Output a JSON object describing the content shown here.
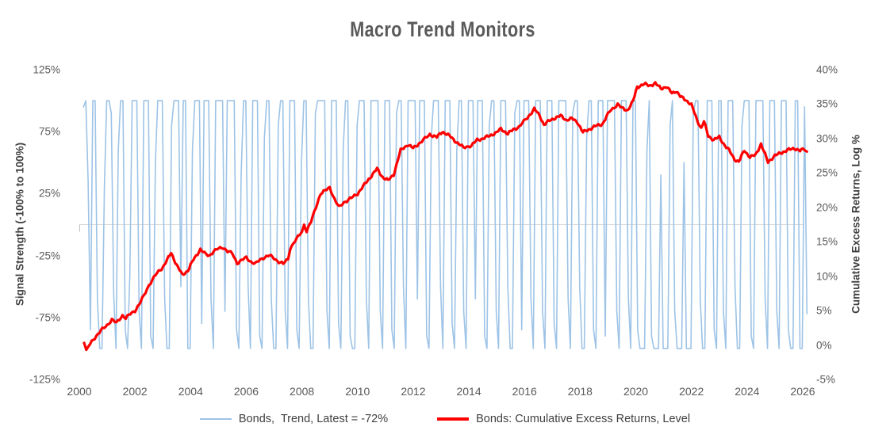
{
  "title": "Macro Trend Monitors",
  "left_axis": {
    "title": "Signal Strength (-100% to 100%)",
    "ticks": [
      "125%",
      "75%",
      "25%",
      "-25%",
      "-75%",
      "-125%"
    ]
  },
  "right_axis": {
    "title": "Cumulative Excess Returns, Log %",
    "ticks": [
      "40%",
      "35%",
      "30%",
      "25%",
      "20%",
      "15%",
      "10%",
      "5%",
      "0%",
      "-5%"
    ]
  },
  "x_axis": {
    "ticks": [
      "2000",
      "2002",
      "2004",
      "2006",
      "2008",
      "2010",
      "2012",
      "2014",
      "2016",
      "2018",
      "2020",
      "2022",
      "2024",
      "2026"
    ]
  },
  "legend": {
    "items": [
      {
        "label": "Bonds,  Trend, Latest = -72%",
        "color": "#9DC3E6",
        "thickness": 2.5
      },
      {
        "label": "Bonds: Cumulative Excess Returns, Level",
        "color": "#FF0000",
        "thickness": 3.5
      }
    ]
  },
  "colors": {
    "trend_blue": "#9DC3E6",
    "returns_red": "#FF0000",
    "gridline": "#D9D9D9",
    "axis_tick_stub": "#BFBFBF",
    "title_text": "#595959",
    "tick_text": "#595959",
    "label_text": "#404040"
  },
  "chart_data": {
    "type": "line",
    "title": "Macro Trend Monitors",
    "x_range": [
      2000,
      2026
    ],
    "grid": "horizontal-zero-line-only",
    "legend_position": "bottom",
    "series": [
      {
        "name": "Bonds,  Trend, Latest = -72%",
        "axis": "left",
        "color": "#9DC3E6",
        "ylim": [
          -125,
          125
        ],
        "units": "% signal strength",
        "x_start": 2000.15,
        "x_step": 0.0833333,
        "latest": -72,
        "values": [
          95,
          100,
          35,
          -85,
          100,
          100,
          -60,
          -100,
          -100,
          30,
          100,
          100,
          90,
          -55,
          -100,
          60,
          100,
          100,
          -85,
          -100,
          -40,
          100,
          100,
          100,
          -70,
          -100,
          100,
          100,
          100,
          -90,
          -100,
          50,
          100,
          100,
          100,
          -60,
          -100,
          -100,
          80,
          100,
          100,
          100,
          -50,
          100,
          100,
          -100,
          -100,
          60,
          100,
          100,
          100,
          -80,
          100,
          100,
          100,
          -60,
          -100,
          100,
          100,
          100,
          100,
          -70,
          100,
          100,
          100,
          100,
          -85,
          -100,
          40,
          100,
          100,
          -50,
          -100,
          100,
          100,
          100,
          -90,
          -100,
          70,
          100,
          100,
          -60,
          -100,
          -100,
          80,
          100,
          100,
          -70,
          -100,
          100,
          100,
          100,
          -85,
          -100,
          50,
          100,
          100,
          -60,
          -100,
          -100,
          90,
          100,
          100,
          100,
          100,
          -70,
          -100,
          100,
          100,
          100,
          -80,
          -100,
          60,
          100,
          100,
          -90,
          -100,
          -100,
          80,
          100,
          100,
          100,
          -60,
          -100,
          100,
          100,
          100,
          100,
          -70,
          -100,
          100,
          100,
          100,
          -85,
          -100,
          90,
          100,
          100,
          -50,
          -100,
          100,
          100,
          100,
          100,
          -60,
          100,
          100,
          100,
          -90,
          -100,
          70,
          100,
          100,
          100,
          -50,
          -100,
          100,
          100,
          100,
          -80,
          -100,
          60,
          100,
          100,
          -70,
          -100,
          100,
          100,
          100,
          -60,
          100,
          100,
          100,
          -90,
          -100,
          80,
          100,
          100,
          -70,
          -100,
          100,
          100,
          100,
          -50,
          -100,
          -100,
          90,
          100,
          100,
          -85,
          100,
          100,
          100,
          -60,
          -100,
          100,
          100,
          100,
          -70,
          -100,
          100,
          100,
          100,
          -80,
          -100,
          100,
          100,
          100,
          100,
          -60,
          -100,
          90,
          100,
          100,
          -50,
          -100,
          -100,
          70,
          100,
          100,
          -85,
          -100,
          100,
          100,
          100,
          -90,
          100,
          100,
          100,
          100,
          -70,
          -100,
          100,
          100,
          100,
          -60,
          -100,
          100,
          100,
          -85,
          -100,
          -100,
          -100,
          60,
          100,
          -90,
          -100,
          -100,
          -100,
          40,
          -100,
          -100,
          -100,
          80,
          100,
          -70,
          -100,
          -100,
          -100,
          50,
          -100,
          -100,
          -100,
          90,
          100,
          100,
          -60,
          -100,
          -100,
          100,
          100,
          100,
          -85,
          -100,
          100,
          100,
          -70,
          -100,
          100,
          100,
          100,
          -50,
          -100,
          -100,
          80,
          100,
          100,
          100,
          -90,
          -100,
          100,
          100,
          100,
          100,
          -60,
          -100,
          100,
          100,
          100,
          -70,
          -100,
          100,
          100,
          100,
          -85,
          -100,
          -100,
          100,
          100,
          -100,
          -100,
          95,
          -72
        ]
      },
      {
        "name": "Bonds: Cumulative Excess Returns, Level",
        "axis": "right",
        "color": "#FF0000",
        "ylim": [
          -5,
          40
        ],
        "units": "% cumulative excess return (log)",
        "points": [
          [
            2000.17,
            0.3
          ],
          [
            2000.25,
            -0.9
          ],
          [
            2000.33,
            -0.2
          ],
          [
            2000.5,
            0.8
          ],
          [
            2000.67,
            1.6
          ],
          [
            2000.83,
            2.3
          ],
          [
            2001.0,
            2.9
          ],
          [
            2001.17,
            3.7
          ],
          [
            2001.33,
            3.2
          ],
          [
            2001.55,
            4.3
          ],
          [
            2001.67,
            3.9
          ],
          [
            2001.83,
            4.5
          ],
          [
            2002.0,
            5.0
          ],
          [
            2002.2,
            6.2
          ],
          [
            2002.5,
            8.7
          ],
          [
            2002.8,
            10.5
          ],
          [
            2003.0,
            11.3
          ],
          [
            2003.15,
            12.3
          ],
          [
            2003.3,
            13.4
          ],
          [
            2003.5,
            11.6
          ],
          [
            2003.7,
            10.2
          ],
          [
            2003.9,
            10.8
          ],
          [
            2004.1,
            12.4
          ],
          [
            2004.35,
            13.9
          ],
          [
            2004.5,
            13.3
          ],
          [
            2004.67,
            13.0
          ],
          [
            2004.83,
            13.6
          ],
          [
            2005.0,
            14.0
          ],
          [
            2005.17,
            14.2
          ],
          [
            2005.33,
            13.6
          ],
          [
            2005.5,
            13.3
          ],
          [
            2005.67,
            11.9
          ],
          [
            2005.83,
            12.3
          ],
          [
            2006.0,
            12.7
          ],
          [
            2006.17,
            12.1
          ],
          [
            2006.33,
            11.8
          ],
          [
            2006.5,
            12.4
          ],
          [
            2006.67,
            12.8
          ],
          [
            2006.83,
            13.0
          ],
          [
            2007.0,
            12.6
          ],
          [
            2007.17,
            12.1
          ],
          [
            2007.33,
            11.8
          ],
          [
            2007.5,
            12.5
          ],
          [
            2007.58,
            14.1
          ],
          [
            2007.75,
            15.1
          ],
          [
            2007.92,
            16.0
          ],
          [
            2008.0,
            16.5
          ],
          [
            2008.08,
            17.4
          ],
          [
            2008.17,
            16.6
          ],
          [
            2008.33,
            17.9
          ],
          [
            2008.5,
            20.0
          ],
          [
            2008.67,
            22.0
          ],
          [
            2008.83,
            22.4
          ],
          [
            2009.0,
            22.9
          ],
          [
            2009.17,
            21.2
          ],
          [
            2009.33,
            20.0
          ],
          [
            2009.5,
            20.7
          ],
          [
            2009.67,
            21.1
          ],
          [
            2009.83,
            21.5
          ],
          [
            2010.0,
            22.0
          ],
          [
            2010.25,
            23.3
          ],
          [
            2010.5,
            24.6
          ],
          [
            2010.7,
            25.6
          ],
          [
            2010.9,
            24.4
          ],
          [
            2011.1,
            23.9
          ],
          [
            2011.3,
            24.8
          ],
          [
            2011.55,
            28.3
          ],
          [
            2011.8,
            29.1
          ],
          [
            2012.0,
            28.6
          ],
          [
            2012.25,
            29.4
          ],
          [
            2012.6,
            30.6
          ],
          [
            2012.85,
            30.2
          ],
          [
            2013.05,
            31.0
          ],
          [
            2013.3,
            30.4
          ],
          [
            2013.55,
            29.5
          ],
          [
            2013.8,
            28.7
          ],
          [
            2014.1,
            29.0
          ],
          [
            2014.3,
            29.8
          ],
          [
            2014.5,
            30.0
          ],
          [
            2014.75,
            30.4
          ],
          [
            2015.0,
            30.9
          ],
          [
            2015.15,
            31.4
          ],
          [
            2015.4,
            30.7
          ],
          [
            2015.6,
            31.3
          ],
          [
            2015.8,
            31.7
          ],
          [
            2016.1,
            33.0
          ],
          [
            2016.35,
            34.3
          ],
          [
            2016.55,
            33.3
          ],
          [
            2016.7,
            32.0
          ],
          [
            2016.9,
            32.6
          ],
          [
            2017.1,
            33.0
          ],
          [
            2017.3,
            33.3
          ],
          [
            2017.5,
            32.7
          ],
          [
            2017.7,
            32.9
          ],
          [
            2017.9,
            32.4
          ],
          [
            2018.1,
            30.9
          ],
          [
            2018.3,
            31.3
          ],
          [
            2018.55,
            31.8
          ],
          [
            2018.8,
            32.1
          ],
          [
            2019.05,
            33.9
          ],
          [
            2019.35,
            35.0
          ],
          [
            2019.5,
            34.4
          ],
          [
            2019.7,
            34.1
          ],
          [
            2019.9,
            35.4
          ],
          [
            2020.05,
            37.5
          ],
          [
            2020.3,
            37.9
          ],
          [
            2020.5,
            37.7
          ],
          [
            2020.7,
            38.0
          ],
          [
            2020.9,
            37.3
          ],
          [
            2021.1,
            37.5
          ],
          [
            2021.3,
            36.6
          ],
          [
            2021.45,
            36.9
          ],
          [
            2021.6,
            36.1
          ],
          [
            2021.8,
            35.6
          ],
          [
            2022.0,
            34.9
          ],
          [
            2022.2,
            32.7
          ],
          [
            2022.35,
            31.5
          ],
          [
            2022.45,
            32.5
          ],
          [
            2022.6,
            30.4
          ],
          [
            2022.8,
            29.8
          ],
          [
            2023.0,
            30.2
          ],
          [
            2023.2,
            29.0
          ],
          [
            2023.35,
            28.3
          ],
          [
            2023.55,
            27.0
          ],
          [
            2023.7,
            26.6
          ],
          [
            2023.9,
            28.3
          ],
          [
            2024.1,
            27.3
          ],
          [
            2024.3,
            27.6
          ],
          [
            2024.5,
            29.2
          ],
          [
            2024.75,
            26.6
          ],
          [
            2025.0,
            27.5
          ],
          [
            2025.2,
            27.9
          ],
          [
            2025.45,
            28.3
          ],
          [
            2025.7,
            28.6
          ],
          [
            2025.9,
            28.2
          ],
          [
            2026.05,
            28.5
          ],
          [
            2026.15,
            28.1
          ]
        ]
      }
    ]
  }
}
